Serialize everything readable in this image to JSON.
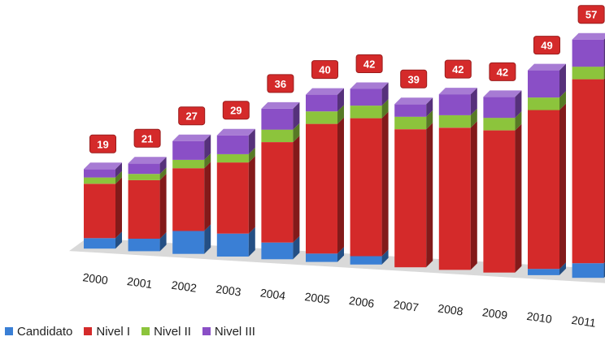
{
  "chart_data": {
    "type": "bar",
    "stacked": true,
    "three_d": true,
    "title": "",
    "xlabel": "",
    "ylabel": "",
    "categories": [
      "2000",
      "2001",
      "2002",
      "2003",
      "2004",
      "2005",
      "2006",
      "2007",
      "2008",
      "2009",
      "2010",
      "2011"
    ],
    "totals": [
      "19",
      "21",
      "27",
      "29",
      "36",
      "40",
      "42",
      "39",
      "42",
      "42",
      "49",
      "57"
    ],
    "series": [
      {
        "name": "Candidato",
        "color": "#3a7fd5",
        "values": [
          2.5,
          3,
          5.5,
          5.5,
          4,
          2,
          2,
          0,
          0,
          0,
          1.5,
          3.5
        ]
      },
      {
        "name": "Nivel I",
        "color": "#d42a2a",
        "values": [
          13,
          14,
          15,
          17,
          24,
          31,
          33,
          33,
          34,
          34,
          38,
          44
        ]
      },
      {
        "name": "Nivel II",
        "color": "#8cc43c",
        "values": [
          1.5,
          1.5,
          2,
          2,
          3,
          3,
          3,
          3,
          3,
          3,
          3,
          3
        ]
      },
      {
        "name": "Nivel III",
        "color": "#8a4fc6",
        "values": [
          2,
          2.5,
          4.5,
          4.5,
          5,
          4,
          4,
          3,
          5,
          5,
          6.5,
          6.5
        ]
      }
    ],
    "legend_position": "bottom-left",
    "grid": false
  }
}
